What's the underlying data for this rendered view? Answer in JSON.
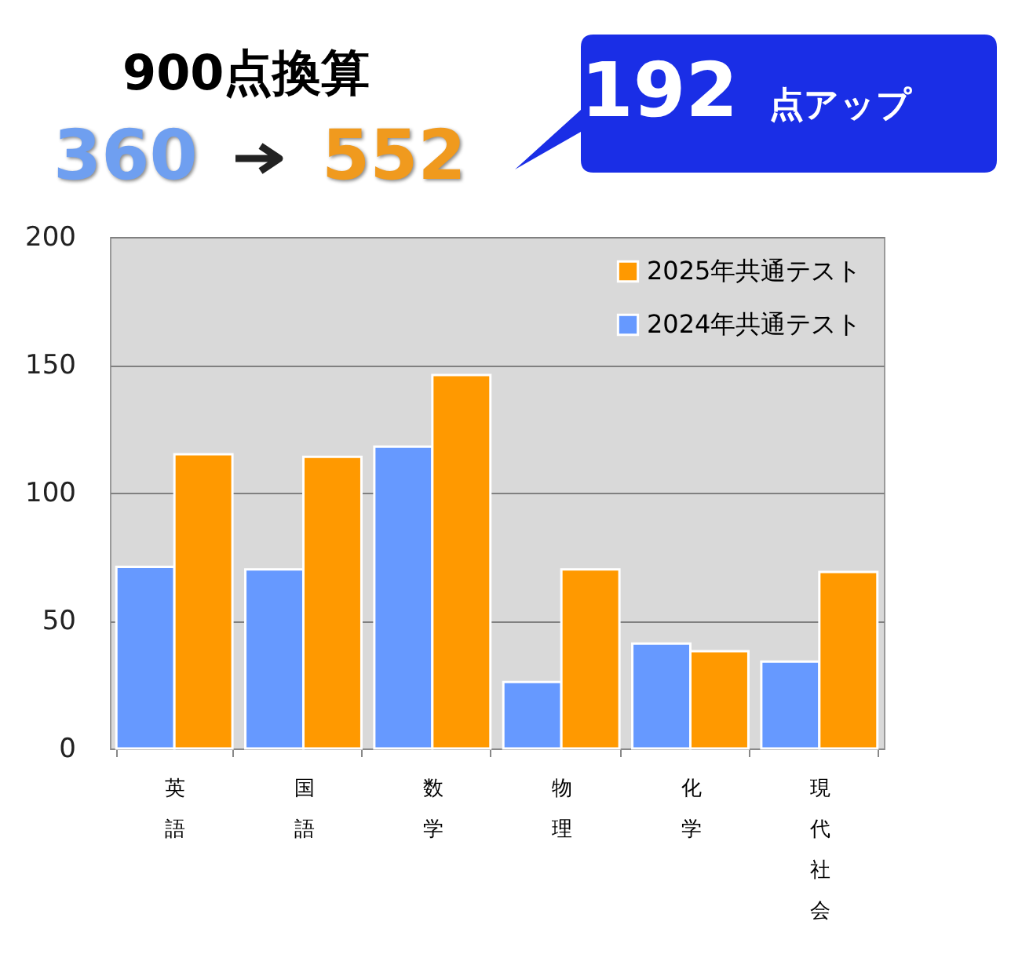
{
  "chart_data": {
    "type": "bar",
    "title": "900点換算",
    "annotations": [
      "360",
      "552",
      "192 点アップ"
    ],
    "categories": [
      "英語",
      "国語",
      "数学",
      "物理",
      "化学",
      "現代社会"
    ],
    "series": [
      {
        "name": "2024年共通テスト",
        "color": "#6699ff",
        "values": [
          71,
          70,
          118,
          26,
          41,
          34
        ]
      },
      {
        "name": "2025年共通テスト",
        "color": "#ff9900",
        "values": [
          115,
          114,
          146,
          70,
          38,
          69
        ]
      }
    ],
    "ylim": [
      0,
      200
    ],
    "yticks": [
      0,
      50,
      100,
      150,
      200
    ],
    "grid": "y",
    "legend": "top right"
  }
}
